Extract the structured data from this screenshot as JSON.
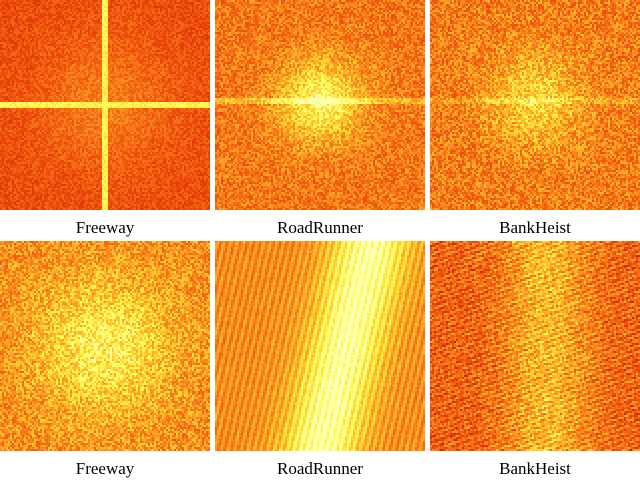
{
  "panels": [
    {
      "row": 0,
      "col": 0,
      "label": "Freeway",
      "pattern": "cross"
    },
    {
      "row": 0,
      "col": 1,
      "label": "RoadRunner",
      "pattern": "center-glow"
    },
    {
      "row": 0,
      "col": 2,
      "label": "BankHeist",
      "pattern": "center-glow-faint"
    },
    {
      "row": 1,
      "col": 0,
      "label": "Freeway",
      "pattern": "bright-speckle"
    },
    {
      "row": 1,
      "col": 1,
      "label": "RoadRunner",
      "pattern": "diagonal-band"
    },
    {
      "row": 1,
      "col": 2,
      "label": "BankHeist",
      "pattern": "streaks"
    }
  ],
  "colormap": [
    "#c81e00",
    "#e8400a",
    "#f46a14",
    "#fb9a22",
    "#ffd02e",
    "#ffff5a",
    "#ffffc8"
  ]
}
